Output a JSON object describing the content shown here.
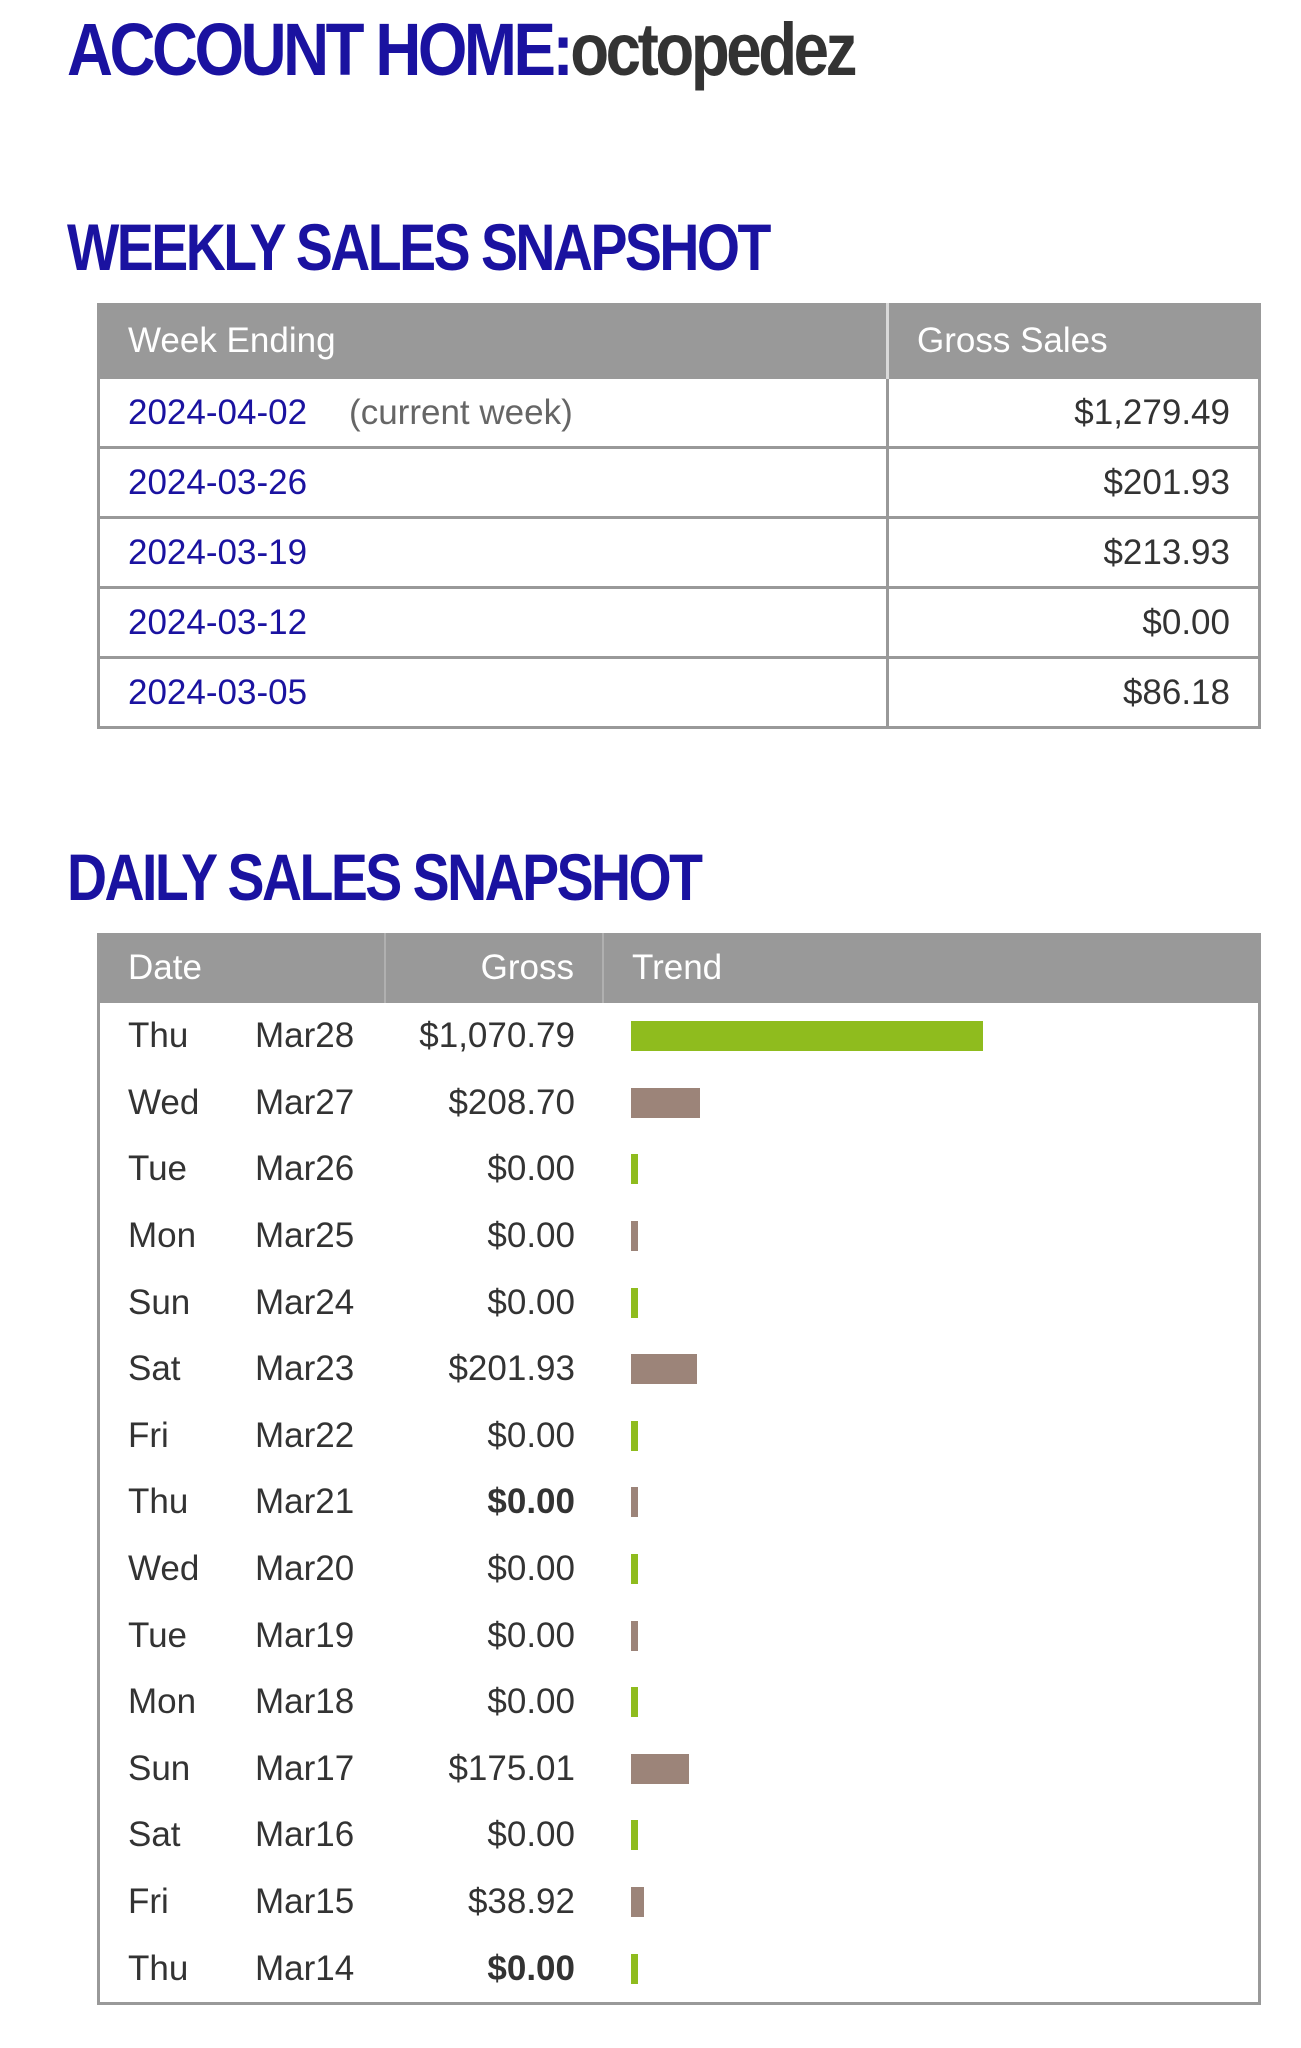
{
  "header": {
    "title_label": "ACCOUNT HOME:",
    "username": "octopedez"
  },
  "weekly": {
    "heading": "WEEKLY SALES SNAPSHOT",
    "columns": [
      "Week Ending",
      "Gross Sales"
    ],
    "rows": [
      {
        "week": "2024-04-02",
        "note": "(current week)",
        "gross": "$1,279.49"
      },
      {
        "week": "2024-03-26",
        "note": "",
        "gross": "$201.93"
      },
      {
        "week": "2024-03-19",
        "note": "",
        "gross": "$213.93"
      },
      {
        "week": "2024-03-12",
        "note": "",
        "gross": "$0.00"
      },
      {
        "week": "2024-03-05",
        "note": "",
        "gross": "$86.18"
      }
    ]
  },
  "daily": {
    "heading": "DAILY SALES SNAPSHOT",
    "columns": [
      "Date",
      "Gross",
      "Trend"
    ],
    "rows": [
      {
        "dow": "Thu",
        "date": "Mar28",
        "gross": "$1,070.79",
        "value": 1070.79,
        "bold": false
      },
      {
        "dow": "Wed",
        "date": "Mar27",
        "gross": "$208.70",
        "value": 208.7,
        "bold": false
      },
      {
        "dow": "Tue",
        "date": "Mar26",
        "gross": "$0.00",
        "value": 0,
        "bold": false
      },
      {
        "dow": "Mon",
        "date": "Mar25",
        "gross": "$0.00",
        "value": 0,
        "bold": false
      },
      {
        "dow": "Sun",
        "date": "Mar24",
        "gross": "$0.00",
        "value": 0,
        "bold": false
      },
      {
        "dow": "Sat",
        "date": "Mar23",
        "gross": "$201.93",
        "value": 201.93,
        "bold": false
      },
      {
        "dow": "Fri",
        "date": "Mar22",
        "gross": "$0.00",
        "value": 0,
        "bold": false
      },
      {
        "dow": "Thu",
        "date": "Mar21",
        "gross": "$0.00",
        "value": 0,
        "bold": true
      },
      {
        "dow": "Wed",
        "date": "Mar20",
        "gross": "$0.00",
        "value": 0,
        "bold": false
      },
      {
        "dow": "Tue",
        "date": "Mar19",
        "gross": "$0.00",
        "value": 0,
        "bold": false
      },
      {
        "dow": "Mon",
        "date": "Mar18",
        "gross": "$0.00",
        "value": 0,
        "bold": false
      },
      {
        "dow": "Sun",
        "date": "Mar17",
        "gross": "$175.01",
        "value": 175.01,
        "bold": false
      },
      {
        "dow": "Sat",
        "date": "Mar16",
        "gross": "$0.00",
        "value": 0,
        "bold": false
      },
      {
        "dow": "Fri",
        "date": "Mar15",
        "gross": "$38.92",
        "value": 38.92,
        "bold": false
      },
      {
        "dow": "Thu",
        "date": "Mar14",
        "gross": "$0.00",
        "value": 0,
        "bold": true
      }
    ]
  },
  "colors": {
    "heading_blue": "#1a12a0",
    "trend_green": "#8fbc1e",
    "trend_brown": "#9c8479",
    "header_gray": "#999999"
  }
}
